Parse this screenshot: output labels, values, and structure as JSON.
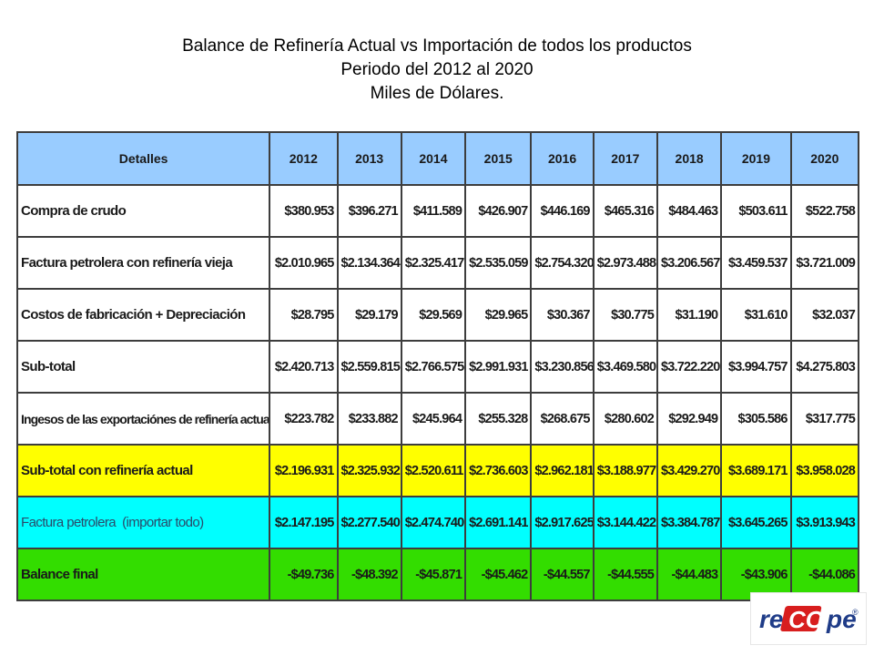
{
  "title": {
    "line1": "Balance de Refinería Actual vs Importación de todos los productos",
    "line2": "Periodo del 2012 al 2020",
    "line3": "Miles de Dólares."
  },
  "table": {
    "header": [
      "Detalles",
      "2012",
      "2013",
      "2014",
      "2015",
      "2016",
      "2017",
      "2018",
      "2019",
      "2020"
    ],
    "rows": [
      {
        "label": "Compra de crudo",
        "values": [
          "$380.953",
          "$396.271",
          "$411.589",
          "$426.907",
          "$446.169",
          "$465.316",
          "$484.463",
          "$503.611",
          "$522.758"
        ]
      },
      {
        "label": "Factura petrolera con refinería vieja",
        "values": [
          "$2.010.965",
          "$2.134.364",
          "$2.325.417",
          "$2.535.059",
          "$2.754.320",
          "$2.973.488",
          "$3.206.567",
          "$3.459.537",
          "$3.721.009"
        ]
      },
      {
        "label": "Costos de fabricación + Depreciación",
        "values": [
          "$28.795",
          "$29.179",
          "$29.569",
          "$29.965",
          "$30.367",
          "$30.775",
          "$31.190",
          "$31.610",
          "$32.037"
        ]
      },
      {
        "label": "Sub-total",
        "values": [
          "$2.420.713",
          "$2.559.815",
          "$2.766.575",
          "$2.991.931",
          "$3.230.856",
          "$3.469.580",
          "$3.722.220",
          "$3.994.757",
          "$4.275.803"
        ]
      },
      {
        "label": "Ingesos de las exportaciónes de refinería actual",
        "values": [
          "$223.782",
          "$233.882",
          "$245.964",
          "$255.328",
          "$268.675",
          "$280.602",
          "$292.949",
          "$305.586",
          "$317.775"
        ]
      },
      {
        "label": "Sub-total con refinería actual",
        "values": [
          "$2.196.931",
          "$2.325.932",
          "$2.520.611",
          "$2.736.603",
          "$2.962.181",
          "$3.188.977",
          "$3.429.270",
          "$3.689.171",
          "$3.958.028"
        ]
      },
      {
        "label": "Factura petrolera  (importar todo)",
        "values": [
          "$2.147.195",
          "$2.277.540",
          "$2.474.740",
          "$2.691.141",
          "$2.917.625",
          "$3.144.422",
          "$3.384.787",
          "$3.645.265",
          "$3.913.943"
        ]
      },
      {
        "label": "Balance final",
        "values": [
          "-$49.736",
          "-$48.392",
          "-$45.871",
          "-$45.462",
          "-$44.557",
          "-$44.555",
          "-$44.483",
          "-$43.906",
          "-$44.086"
        ]
      }
    ],
    "colors": {
      "header": "#99ccff",
      "subtotal_actual": "#ffff00",
      "factura_importar": "#00ffff",
      "balance_final": "#33dd00"
    }
  },
  "logo": {
    "text": "reCOPe",
    "mark": "®",
    "colors": {
      "primary": "#1f3c88",
      "accent": "#d81e1e"
    }
  }
}
